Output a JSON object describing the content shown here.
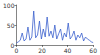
{
  "chart_data": {
    "type": "line",
    "x": [
      0,
      1.5,
      3,
      4.5,
      6,
      7.5,
      9,
      10.5,
      12,
      13.5,
      15,
      16.5,
      18,
      19.5,
      21,
      22.5,
      24,
      25.5,
      27,
      28.5,
      30,
      31.5,
      33,
      34.5,
      36,
      37.5,
      39,
      40.5,
      42,
      43.5,
      45,
      46.5,
      48,
      49.5,
      51,
      52.5,
      54,
      55.5,
      57,
      58.5,
      60
    ],
    "values": [
      5,
      8,
      12,
      30,
      10,
      15,
      45,
      12,
      20,
      85,
      18,
      25,
      60,
      15,
      40,
      20,
      70,
      22,
      35,
      18,
      50,
      15,
      28,
      40,
      12,
      30,
      20,
      55,
      15,
      22,
      35,
      12,
      25,
      18,
      30,
      10,
      20,
      15,
      12,
      8,
      6
    ],
    "color": "#3a5fcd",
    "xlim": [
      0,
      60
    ],
    "xticks": [
      0,
      20,
      40,
      60
    ],
    "ylim": [
      0,
      100
    ],
    "yticks": [
      0,
      50,
      100
    ],
    "grid": false
  }
}
